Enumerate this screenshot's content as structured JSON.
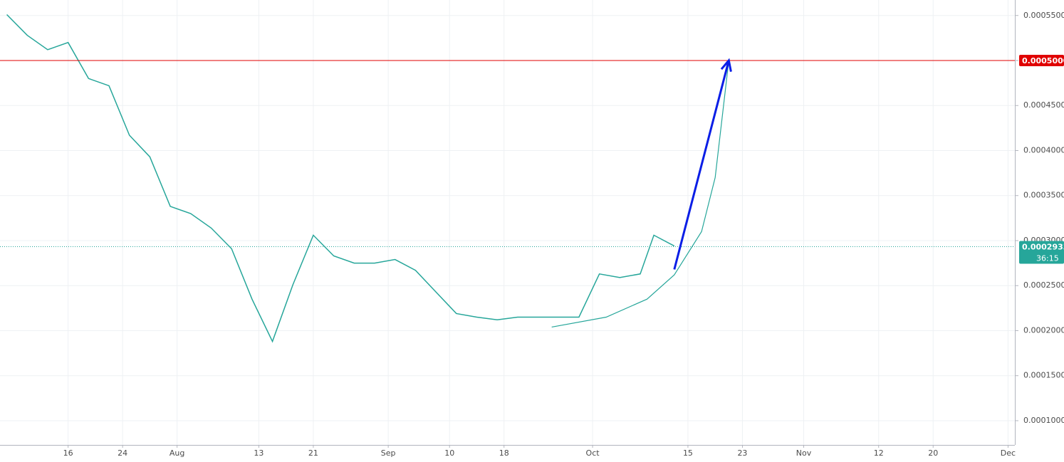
{
  "chart_data": {
    "type": "line",
    "x": [
      "Jul 7",
      "Jul 10",
      "Jul 13",
      "Jul 16",
      "Jul 19",
      "Jul 22",
      "Jul 25",
      "Jul 28",
      "Jul 31",
      "Aug 3",
      "Aug 6",
      "Aug 9",
      "Aug 12",
      "Aug 15",
      "Aug 18",
      "Aug 21",
      "Aug 24",
      "Aug 27",
      "Aug 30",
      "Sep 2",
      "Sep 5",
      "Sep 8",
      "Sep 11",
      "Sep 14",
      "Sep 17",
      "Sep 20",
      "Sep 23",
      "Sep 26",
      "Sep 29",
      "Oct 2",
      "Oct 5",
      "Oct 8",
      "Oct 10",
      "Oct 13"
    ],
    "series": [
      {
        "color": "#26a69a",
        "values": [
          0.000551,
          0.000528,
          0.000512,
          0.00052,
          0.00048,
          0.000472,
          0.000417,
          0.000393,
          0.000338,
          0.00033,
          0.000314,
          0.000291,
          0.000235,
          0.000188,
          0.000251,
          0.000306,
          0.000283,
          0.000275,
          0.000275,
          0.000279,
          0.000267,
          0.000243,
          0.000219,
          0.000215,
          0.000212,
          0.000215,
          0.000215,
          0.000215,
          0.000215,
          0.000263,
          0.000259,
          0.000263,
          0.000306,
          0.000294
        ]
      }
    ],
    "xlim": [
      "Jul 6",
      "Dec 2"
    ],
    "xticks": [
      {
        "value": "Jul 16",
        "label": "16"
      },
      {
        "value": "Jul 24",
        "label": "24"
      },
      {
        "value": "Aug 1",
        "label": "Aug"
      },
      {
        "value": "Aug 13",
        "label": "13"
      },
      {
        "value": "Aug 21",
        "label": "21"
      },
      {
        "value": "Sep 1",
        "label": "Sep"
      },
      {
        "value": "Sep 10",
        "label": "10"
      },
      {
        "value": "Sep 18",
        "label": "18"
      },
      {
        "value": "Oct 1",
        "label": "Oct"
      },
      {
        "value": "Oct 15",
        "label": "15"
      },
      {
        "value": "Oct 23",
        "label": "23"
      },
      {
        "value": "Nov 1",
        "label": "Nov"
      },
      {
        "value": "Nov 12",
        "label": "12"
      },
      {
        "value": "Nov 20",
        "label": "20"
      },
      {
        "value": "Dec 1",
        "label": "Dec"
      }
    ],
    "ylim": [
      7.31e-05,
      0.0005672
    ],
    "yticks": [
      {
        "value": 0.0001,
        "label": "0.0001000"
      },
      {
        "value": 0.00015,
        "label": "0.0001500"
      },
      {
        "value": 0.0002,
        "label": "0.0002000"
      },
      {
        "value": 0.00025,
        "label": "0.0002500"
      },
      {
        "value": 0.0003,
        "label": "0.0003000"
      },
      {
        "value": 0.00035,
        "label": "0.0003500"
      },
      {
        "value": 0.0004,
        "label": "0.0004000"
      },
      {
        "value": 0.00045,
        "label": "0.0004500"
      },
      {
        "value": 0.0005,
        "label": "0.0005000"
      },
      {
        "value": 0.00055,
        "label": "0.0005500"
      }
    ],
    "grid": true,
    "target_line": {
      "value": 0.0005,
      "label": "0.0005000",
      "color": "#e00000"
    },
    "price_line": {
      "value": 0.0002933,
      "label": "0.0002933",
      "color": "#26a69a"
    },
    "timer": "36:15",
    "arrow": {
      "color": "#0a1ee6",
      "from": {
        "x": "Oct 13",
        "y": 0.000268
      },
      "to": {
        "x": "Oct 21",
        "y": 0.0005
      }
    },
    "curve": {
      "color": "#26a69a",
      "x": [
        "Sep 25",
        "Oct 3",
        "Oct 9",
        "Oct 13",
        "Oct 17",
        "Oct 19",
        "Oct 21"
      ],
      "y": [
        0.000204,
        0.000215,
        0.000235,
        0.000262,
        0.00031,
        0.00037,
        0.0005
      ]
    }
  }
}
